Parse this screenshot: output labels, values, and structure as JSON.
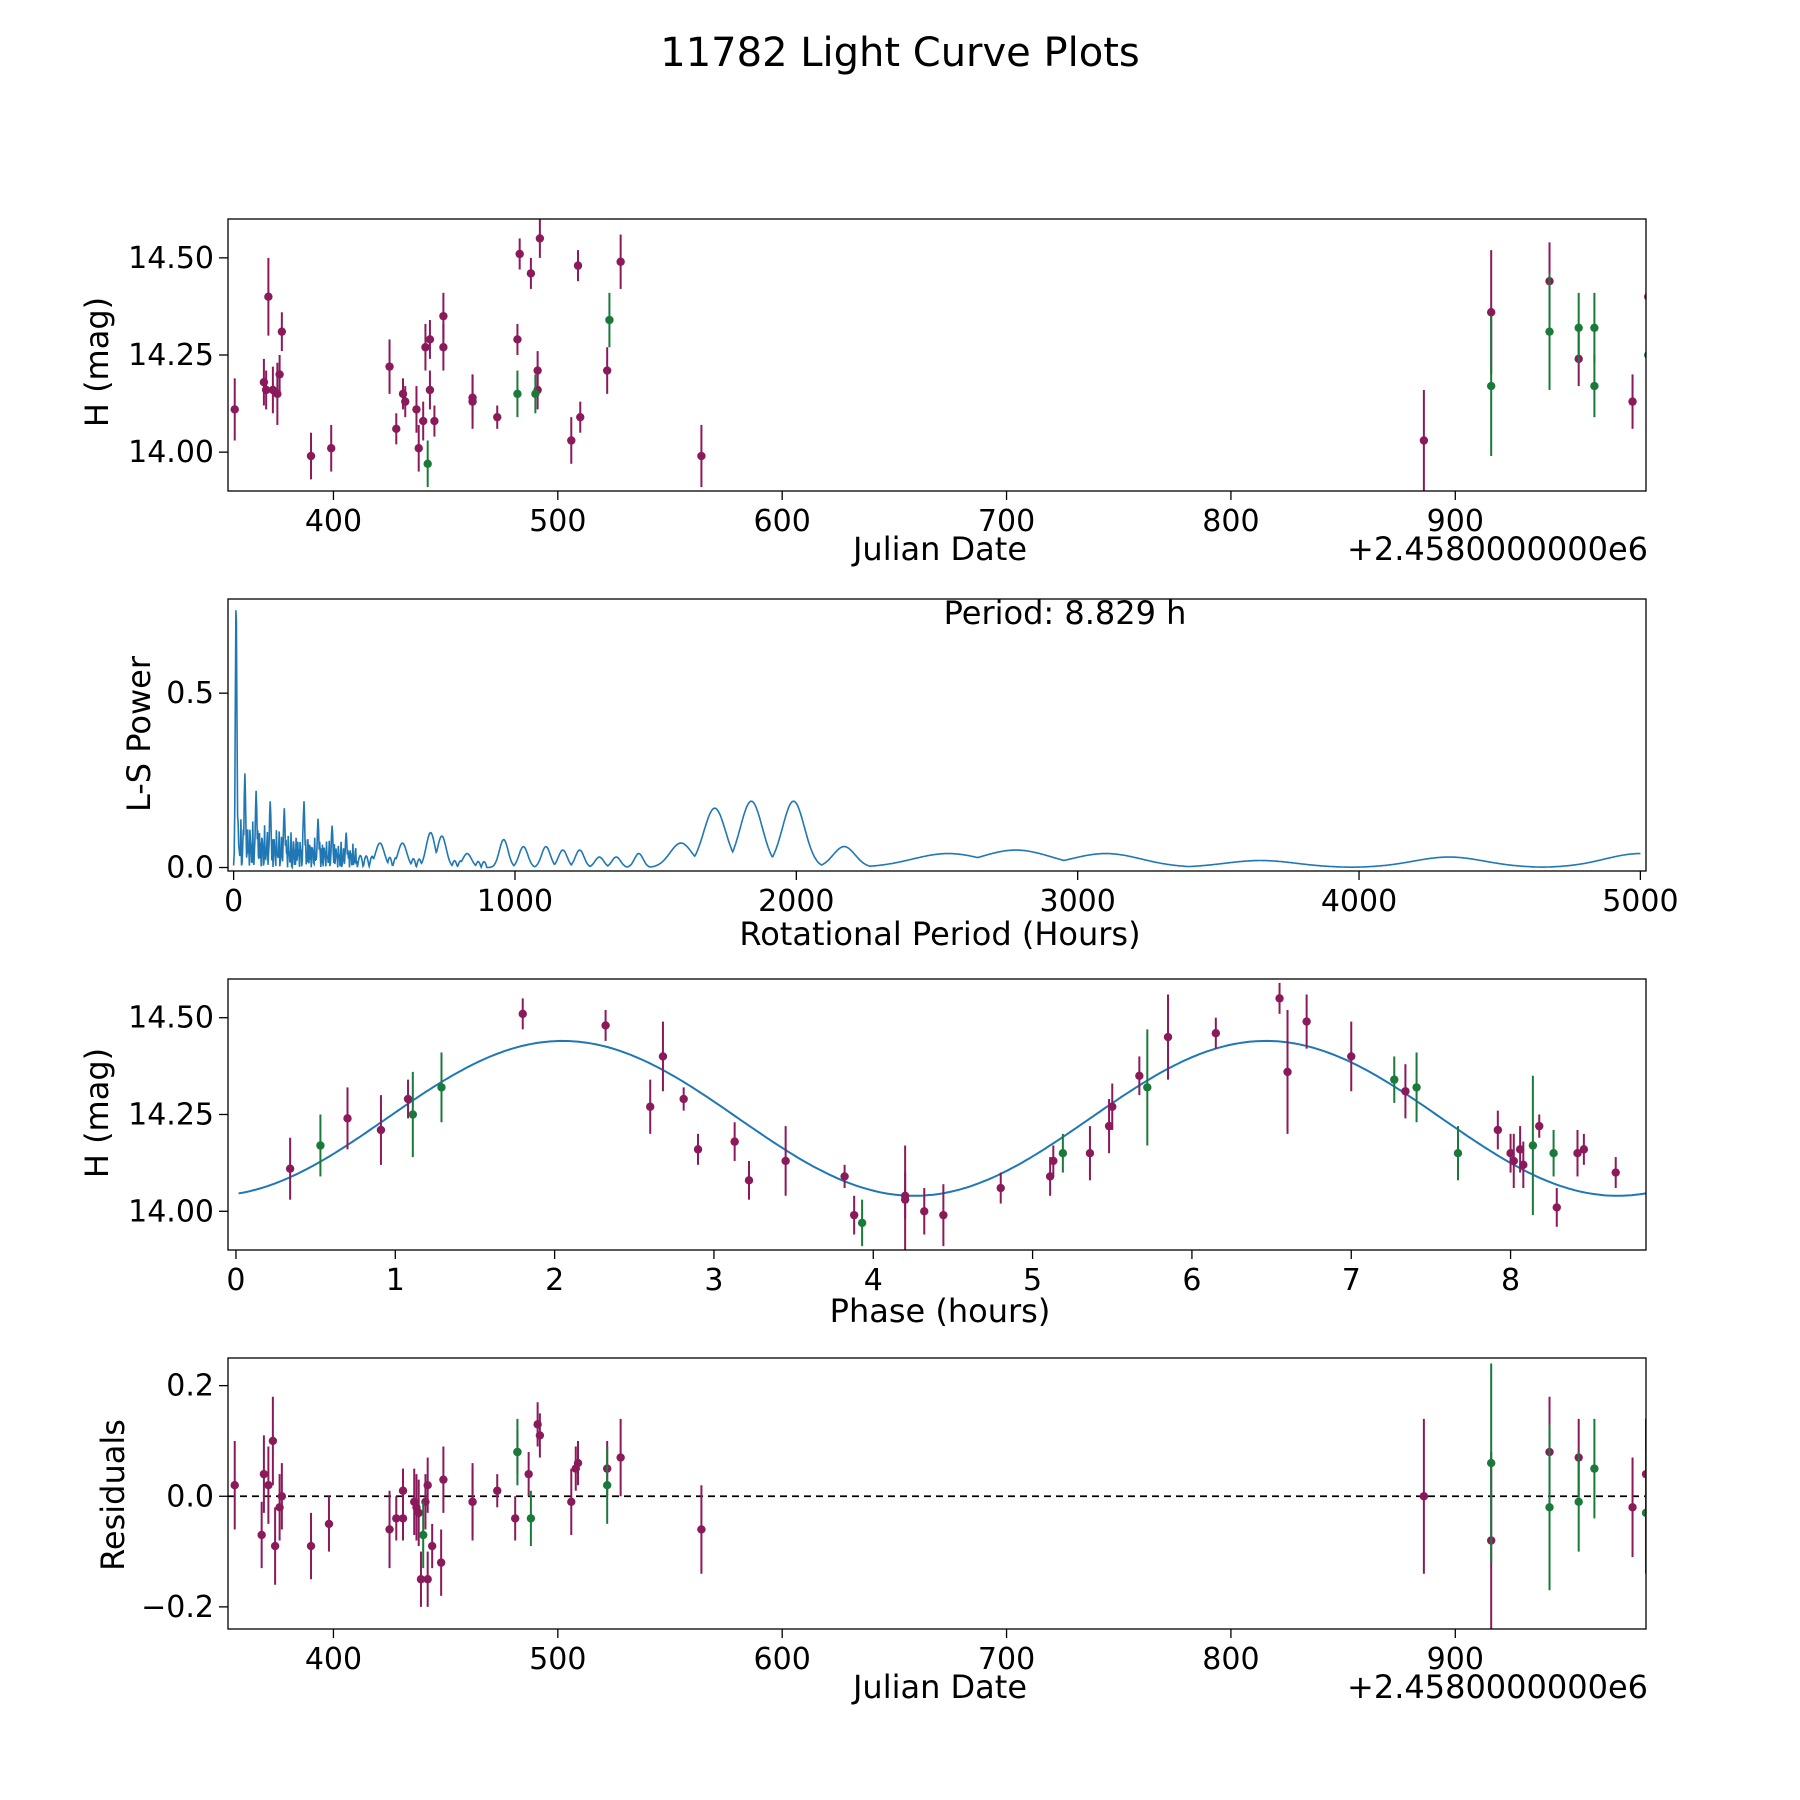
{
  "title": "11782 Light Curve Plots",
  "colors": {
    "magenta_points": "#8b1a5a",
    "green_points": "#1a7a3a",
    "model_line": "#1f77b4",
    "zero_line": "#000000"
  },
  "chart_data": [
    {
      "type": "scatter",
      "id": "lightcurve",
      "xlabel": "Julian Date",
      "ylabel": "H (mag)",
      "offset_label": "+2.4580000000e6",
      "xlim": [
        353,
        985
      ],
      "ylim": [
        13.9,
        14.6
      ],
      "xticks": [
        400,
        500,
        600,
        700,
        800,
        900
      ],
      "yticks": [
        14.0,
        14.25,
        14.5
      ],
      "ytick_labels": [
        "14.00",
        "14.25",
        "14.50"
      ],
      "series": [
        {
          "name": "magenta",
          "points": [
            [
              356,
              14.11,
              0.08
            ],
            [
              369,
              14.18,
              0.06
            ],
            [
              370,
              14.16,
              0.05
            ],
            [
              371,
              14.4,
              0.1
            ],
            [
              373,
              14.16,
              0.06
            ],
            [
              375,
              14.15,
              0.08
            ],
            [
              376,
              14.2,
              0.05
            ],
            [
              377,
              14.31,
              0.05
            ],
            [
              390,
              13.99,
              0.06
            ],
            [
              399,
              14.01,
              0.06
            ],
            [
              425,
              14.22,
              0.07
            ],
            [
              428,
              14.06,
              0.04
            ],
            [
              431,
              14.15,
              0.04
            ],
            [
              432,
              14.13,
              0.04
            ],
            [
              437,
              14.11,
              0.06
            ],
            [
              438,
              14.01,
              0.06
            ],
            [
              440,
              14.08,
              0.05
            ],
            [
              441,
              14.27,
              0.06
            ],
            [
              443,
              14.16,
              0.05
            ],
            [
              443,
              14.29,
              0.05
            ],
            [
              445,
              14.08,
              0.04
            ],
            [
              449,
              14.27,
              0.06
            ],
            [
              449,
              14.35,
              0.06
            ],
            [
              462,
              14.13,
              0.07
            ],
            [
              462,
              14.14,
              0.06
            ],
            [
              473,
              14.09,
              0.03
            ],
            [
              482,
              14.29,
              0.04
            ],
            [
              483,
              14.51,
              0.04
            ],
            [
              488,
              14.46,
              0.04
            ],
            [
              491,
              14.16,
              0.05
            ],
            [
              491,
              14.21,
              0.05
            ],
            [
              492,
              14.55,
              0.05
            ],
            [
              506,
              14.03,
              0.06
            ],
            [
              509,
              14.48,
              0.04
            ],
            [
              510,
              14.09,
              0.04
            ],
            [
              522,
              14.21,
              0.06
            ],
            [
              528,
              14.49,
              0.07
            ],
            [
              564,
              13.99,
              0.08
            ],
            [
              886,
              14.03,
              0.13
            ],
            [
              916,
              14.36,
              0.16
            ],
            [
              942,
              14.44,
              0.1
            ],
            [
              955,
              14.24,
              0.07
            ],
            [
              979,
              14.13,
              0.07
            ],
            [
              986,
              14.4,
              0.09
            ]
          ]
        },
        {
          "name": "green",
          "points": [
            [
              442,
              13.97,
              0.06
            ],
            [
              482,
              14.15,
              0.06
            ],
            [
              490,
              14.15,
              0.05
            ],
            [
              523,
              14.34,
              0.07
            ],
            [
              916,
              14.17,
              0.18
            ],
            [
              942,
              14.31,
              0.15
            ],
            [
              955,
              14.32,
              0.09
            ],
            [
              962,
              14.32,
              0.09
            ],
            [
              962,
              14.17,
              0.08
            ],
            [
              986,
              14.25,
              0.11
            ]
          ]
        }
      ]
    },
    {
      "type": "line",
      "id": "periodogram",
      "xlabel": "Rotational Period (Hours)",
      "ylabel": "L-S Power",
      "annotation": "Period: 8.829 h",
      "xlim": [
        -20,
        5020
      ],
      "ylim": [
        -0.01,
        0.77
      ],
      "xticks": [
        0,
        1000,
        2000,
        3000,
        4000,
        5000
      ],
      "yticks": [
        0.0,
        0.5
      ],
      "ytick_labels": [
        "0.0",
        "0.5"
      ],
      "peaks": [
        [
          8.829,
          0.77
        ],
        [
          40,
          0.27
        ],
        [
          80,
          0.22
        ],
        [
          130,
          0.19
        ],
        [
          180,
          0.17
        ],
        [
          250,
          0.19
        ],
        [
          300,
          0.14
        ],
        [
          350,
          0.12
        ],
        [
          400,
          0.1
        ],
        [
          520,
          0.07
        ],
        [
          600,
          0.07
        ],
        [
          700,
          0.1
        ],
        [
          740,
          0.09
        ],
        [
          830,
          0.04
        ],
        [
          960,
          0.08
        ],
        [
          1030,
          0.06
        ],
        [
          1110,
          0.06
        ],
        [
          1170,
          0.05
        ],
        [
          1230,
          0.05
        ],
        [
          1300,
          0.03
        ],
        [
          1360,
          0.03
        ],
        [
          1440,
          0.04
        ],
        [
          1590,
          0.07
        ],
        [
          1710,
          0.17
        ],
        [
          1840,
          0.19
        ],
        [
          1990,
          0.19
        ],
        [
          2170,
          0.06
        ],
        [
          2540,
          0.04
        ],
        [
          2780,
          0.05
        ],
        [
          3100,
          0.04
        ],
        [
          3650,
          0.02
        ],
        [
          4320,
          0.03
        ],
        [
          5000,
          0.04
        ]
      ]
    },
    {
      "type": "scatter",
      "id": "phased",
      "xlabel": "Phase (hours)",
      "ylabel": "H (mag)",
      "xlim": [
        -0.05,
        8.85
      ],
      "ylim": [
        13.9,
        14.6
      ],
      "xticks": [
        0,
        1,
        2,
        3,
        4,
        5,
        6,
        7,
        8
      ],
      "yticks": [
        14.0,
        14.25,
        14.5
      ],
      "ytick_labels": [
        "14.00",
        "14.25",
        "14.50"
      ],
      "model": {
        "mean": 14.24,
        "amplitude": 0.2,
        "period": 4.4145,
        "peak_phase": 2.05
      },
      "series": [
        {
          "name": "magenta",
          "points": [
            [
              0.34,
              14.11,
              0.08
            ],
            [
              0.7,
              14.24,
              0.08
            ],
            [
              0.91,
              14.21,
              0.09
            ],
            [
              1.08,
              14.29,
              0.05
            ],
            [
              1.8,
              14.51,
              0.04
            ],
            [
              2.32,
              14.48,
              0.04
            ],
            [
              2.6,
              14.27,
              0.07
            ],
            [
              2.68,
              14.4,
              0.09
            ],
            [
              2.81,
              14.29,
              0.03
            ],
            [
              2.9,
              14.16,
              0.04
            ],
            [
              3.13,
              14.18,
              0.05
            ],
            [
              3.22,
              14.08,
              0.05
            ],
            [
              3.45,
              14.13,
              0.09
            ],
            [
              3.82,
              14.09,
              0.03
            ],
            [
              3.88,
              13.99,
              0.05
            ],
            [
              4.2,
              14.03,
              0.14
            ],
            [
              4.2,
              14.04,
              0.06
            ],
            [
              4.32,
              14.0,
              0.06
            ],
            [
              4.44,
              13.99,
              0.08
            ],
            [
              4.8,
              14.06,
              0.04
            ],
            [
              5.11,
              14.09,
              0.05
            ],
            [
              5.13,
              14.13,
              0.04
            ],
            [
              5.36,
              14.15,
              0.07
            ],
            [
              5.48,
              14.22,
              0.07
            ],
            [
              5.5,
              14.27,
              0.06
            ],
            [
              5.67,
              14.35,
              0.05
            ],
            [
              5.85,
              14.45,
              0.11
            ],
            [
              6.15,
              14.46,
              0.04
            ],
            [
              6.55,
              14.55,
              0.04
            ],
            [
              6.6,
              14.36,
              0.16
            ],
            [
              6.72,
              14.49,
              0.07
            ],
            [
              7.0,
              14.4,
              0.09
            ],
            [
              7.34,
              14.31,
              0.07
            ],
            [
              7.92,
              14.21,
              0.05
            ],
            [
              8.0,
              14.15,
              0.05
            ],
            [
              8.02,
              14.13,
              0.07
            ],
            [
              8.06,
              14.16,
              0.06
            ],
            [
              8.08,
              14.12,
              0.06
            ],
            [
              8.18,
              14.22,
              0.03
            ],
            [
              8.29,
              14.01,
              0.05
            ],
            [
              8.42,
              14.15,
              0.06
            ],
            [
              8.46,
              14.16,
              0.04
            ],
            [
              8.66,
              14.1,
              0.04
            ]
          ]
        },
        {
          "name": "green",
          "points": [
            [
              0.53,
              14.17,
              0.08
            ],
            [
              1.11,
              14.25,
              0.11
            ],
            [
              1.29,
              14.32,
              0.09
            ],
            [
              3.93,
              13.97,
              0.06
            ],
            [
              5.19,
              14.15,
              0.05
            ],
            [
              5.72,
              14.32,
              0.15
            ],
            [
              7.27,
              14.34,
              0.06
            ],
            [
              7.41,
              14.32,
              0.09
            ],
            [
              7.67,
              14.15,
              0.07
            ],
            [
              8.14,
              14.17,
              0.18
            ],
            [
              8.27,
              14.15,
              0.06
            ]
          ]
        }
      ]
    },
    {
      "type": "scatter",
      "id": "residuals",
      "xlabel": "Julian Date",
      "ylabel": "Residuals",
      "offset_label": "+2.4580000000e6",
      "xlim": [
        353,
        985
      ],
      "ylim": [
        -0.24,
        0.25
      ],
      "xticks": [
        400,
        500,
        600,
        700,
        800,
        900
      ],
      "yticks": [
        -0.2,
        0.0,
        0.2
      ],
      "ytick_labels": [
        "−0.2",
        "0.0",
        "0.2"
      ],
      "zero_line": true,
      "series": [
        {
          "name": "magenta",
          "points": [
            [
              356,
              0.02,
              0.08
            ],
            [
              368,
              -0.07,
              0.06
            ],
            [
              369,
              0.04,
              0.07
            ],
            [
              371,
              0.02,
              0.07
            ],
            [
              373,
              0.1,
              0.08
            ],
            [
              374,
              -0.09,
              0.07
            ],
            [
              376,
              -0.02,
              0.06
            ],
            [
              377,
              0.0,
              0.06
            ],
            [
              390,
              -0.09,
              0.06
            ],
            [
              398,
              -0.05,
              0.05
            ],
            [
              425,
              -0.06,
              0.07
            ],
            [
              428,
              -0.04,
              0.04
            ],
            [
              431,
              -0.04,
              0.04
            ],
            [
              431,
              0.01,
              0.04
            ],
            [
              436,
              -0.01,
              0.06
            ],
            [
              437,
              -0.02,
              0.06
            ],
            [
              438,
              -0.03,
              0.06
            ],
            [
              439,
              -0.15,
              0.05
            ],
            [
              441,
              -0.01,
              0.05
            ],
            [
              442,
              -0.15,
              0.05
            ],
            [
              442,
              0.02,
              0.05
            ],
            [
              444,
              -0.09,
              0.04
            ],
            [
              448,
              -0.12,
              0.06
            ],
            [
              449,
              0.03,
              0.06
            ],
            [
              462,
              -0.01,
              0.07
            ],
            [
              462,
              -0.01,
              0.06
            ],
            [
              473,
              0.01,
              0.03
            ],
            [
              481,
              -0.04,
              0.04
            ],
            [
              482,
              0.08,
              0.04
            ],
            [
              487,
              0.04,
              0.04
            ],
            [
              491,
              0.13,
              0.04
            ],
            [
              492,
              0.11,
              0.04
            ],
            [
              506,
              -0.01,
              0.06
            ],
            [
              508,
              0.05,
              0.04
            ],
            [
              509,
              0.06,
              0.04
            ],
            [
              522,
              0.05,
              0.05
            ],
            [
              528,
              0.07,
              0.07
            ],
            [
              564,
              -0.06,
              0.08
            ],
            [
              886,
              0.0,
              0.14
            ],
            [
              916,
              -0.08,
              0.16
            ],
            [
              942,
              0.08,
              0.1
            ],
            [
              955,
              0.07,
              0.07
            ],
            [
              979,
              -0.02,
              0.09
            ],
            [
              985,
              0.04,
              0.1
            ]
          ]
        },
        {
          "name": "green",
          "points": [
            [
              440,
              -0.07,
              0.06
            ],
            [
              482,
              0.08,
              0.06
            ],
            [
              488,
              -0.04,
              0.05
            ],
            [
              522,
              0.02,
              0.07
            ],
            [
              916,
              0.06,
              0.18
            ],
            [
              942,
              -0.02,
              0.15
            ],
            [
              955,
              -0.01,
              0.09
            ],
            [
              962,
              0.05,
              0.09
            ],
            [
              985,
              -0.03,
              0.11
            ]
          ]
        }
      ]
    }
  ]
}
